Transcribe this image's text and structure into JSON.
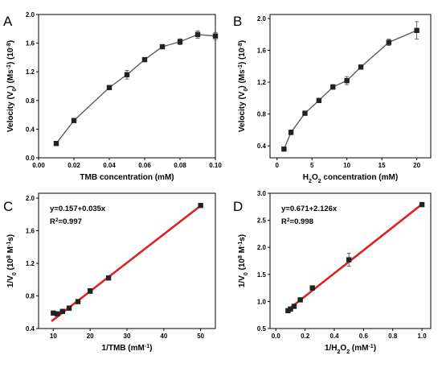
{
  "chart_data": [
    {
      "panel": "A",
      "type": "line",
      "xlabel": [
        {
          "t": "TMB concentration (mM)"
        }
      ],
      "ylabel": [
        {
          "t": "Velocity (V"
        },
        {
          "t": "0",
          "sub": true
        },
        {
          "t": ") (Ms"
        },
        {
          "t": "-1",
          "sup": true
        },
        {
          "t": ") (10"
        },
        {
          "t": "-8",
          "sup": true
        },
        {
          "t": ")"
        }
      ],
      "xlim": [
        0.0,
        0.1
      ],
      "ylim": [
        0.0,
        2.0
      ],
      "xticks": [
        "0.00",
        "0.02",
        "0.04",
        "0.06",
        "0.08",
        "0.10"
      ],
      "yticks": [
        "0.0",
        "0.4",
        "0.8",
        "1.2",
        "1.6",
        "2.0"
      ],
      "x": [
        0.01,
        0.02,
        0.04,
        0.05,
        0.06,
        0.07,
        0.08,
        0.09,
        0.1
      ],
      "y": [
        0.2,
        0.52,
        0.98,
        1.16,
        1.37,
        1.55,
        1.62,
        1.72,
        1.7
      ],
      "err": [
        0.02,
        0.02,
        0.02,
        0.06,
        0.02,
        0.02,
        0.04,
        0.05,
        0.05
      ],
      "color": "#555555"
    },
    {
      "panel": "B",
      "type": "line",
      "xlabel": [
        {
          "t": "H"
        },
        {
          "t": "2",
          "sub": true
        },
        {
          "t": "O"
        },
        {
          "t": "2",
          "sub": true
        },
        {
          "t": " concentration (mM)"
        }
      ],
      "ylabel": [
        {
          "t": "Velocity (V"
        },
        {
          "t": "0",
          "sub": true
        },
        {
          "t": ") (Ms"
        },
        {
          "t": "-1",
          "sup": true
        },
        {
          "t": ") (10"
        },
        {
          "t": "-8",
          "sup": true
        },
        {
          "t": ")"
        }
      ],
      "xlim": [
        -1,
        22
      ],
      "ylim": [
        0.25,
        2.05
      ],
      "xticks": [
        "0",
        "5",
        "10",
        "15",
        "20"
      ],
      "yticks": [
        "0.4",
        "0.8",
        "1.2",
        "1.6",
        "2.0"
      ],
      "x": [
        1,
        2,
        4,
        6,
        8,
        10,
        12,
        16,
        20
      ],
      "y": [
        0.36,
        0.57,
        0.81,
        0.97,
        1.14,
        1.22,
        1.39,
        1.7,
        1.85
      ],
      "err": [
        0.02,
        0.03,
        0.02,
        0.02,
        0.03,
        0.05,
        0.02,
        0.04,
        0.11
      ],
      "color": "#555555"
    },
    {
      "panel": "C",
      "type": "scatter",
      "xlabel": [
        {
          "t": "1/TMB  (mM"
        },
        {
          "t": "-1",
          "sup": true
        },
        {
          "t": ")"
        }
      ],
      "ylabel": [
        {
          "t": "1/V"
        },
        {
          "t": "0",
          "sub": true
        },
        {
          "t": " (10"
        },
        {
          "t": "8",
          "sup": true
        },
        {
          "t": " M"
        },
        {
          "t": "-1",
          "sup": true
        },
        {
          "t": "s)"
        }
      ],
      "xlim": [
        6,
        54
      ],
      "ylim": [
        0.4,
        2.06
      ],
      "xticks": [
        "10",
        "20",
        "30",
        "40",
        "50"
      ],
      "yticks": [
        "0.4",
        "0.8",
        "1.2",
        "1.6",
        "2.0"
      ],
      "x": [
        10.0,
        11.1,
        12.5,
        14.3,
        16.7,
        20.0,
        25.0,
        50.0
      ],
      "y": [
        0.59,
        0.58,
        0.61,
        0.65,
        0.73,
        0.86,
        1.02,
        1.91
      ],
      "err": [
        0.02,
        0.02,
        0.02,
        0.02,
        0.02,
        0.03,
        0.02,
        0.02
      ],
      "fit": {
        "x0": 9.5,
        "x1": 50.5,
        "intercept": 0.157,
        "slope": 0.035,
        "color": "#dd2121"
      },
      "annotation": {
        "eq": "y=0.157+0.035x",
        "r2_label": "R",
        "r2_sup": "2",
        "r2_value": "=0.997"
      }
    },
    {
      "panel": "D",
      "type": "scatter",
      "xlabel": [
        {
          "t": "1/H"
        },
        {
          "t": "2",
          "sub": true
        },
        {
          "t": "O"
        },
        {
          "t": "2",
          "sub": true
        },
        {
          "t": " (mM"
        },
        {
          "t": "-1",
          "sup": true
        },
        {
          "t": ")"
        }
      ],
      "ylabel": [
        {
          "t": "1/V"
        },
        {
          "t": "0",
          "sub": true
        },
        {
          "t": " (10"
        },
        {
          "t": "8",
          "sup": true
        },
        {
          "t": " M"
        },
        {
          "t": "-1",
          "sup": true
        },
        {
          "t": "s)"
        }
      ],
      "xlim": [
        -0.04,
        1.06
      ],
      "ylim": [
        0.5,
        3.0
      ],
      "xticks": [
        "0.0",
        "0.2",
        "0.4",
        "0.6",
        "0.8",
        "1.0"
      ],
      "yticks": [
        "0.5",
        "1.0",
        "1.5",
        "2.0",
        "2.5",
        "3.0"
      ],
      "x": [
        0.083,
        0.1,
        0.125,
        0.167,
        0.25,
        0.5,
        1.0
      ],
      "y": [
        0.83,
        0.86,
        0.91,
        1.03,
        1.25,
        1.77,
        2.79
      ],
      "err": [
        0.03,
        0.03,
        0.02,
        0.02,
        0.03,
        0.12,
        0.02
      ],
      "fit": {
        "x0": 0.08,
        "x1": 1.0,
        "intercept": 0.671,
        "slope": 2.126,
        "color": "#dd2121"
      },
      "annotation": {
        "eq": "y=0.671+2.126x",
        "r2_label": "R",
        "r2_sup": "2",
        "r2_value": "=0.998"
      }
    }
  ]
}
